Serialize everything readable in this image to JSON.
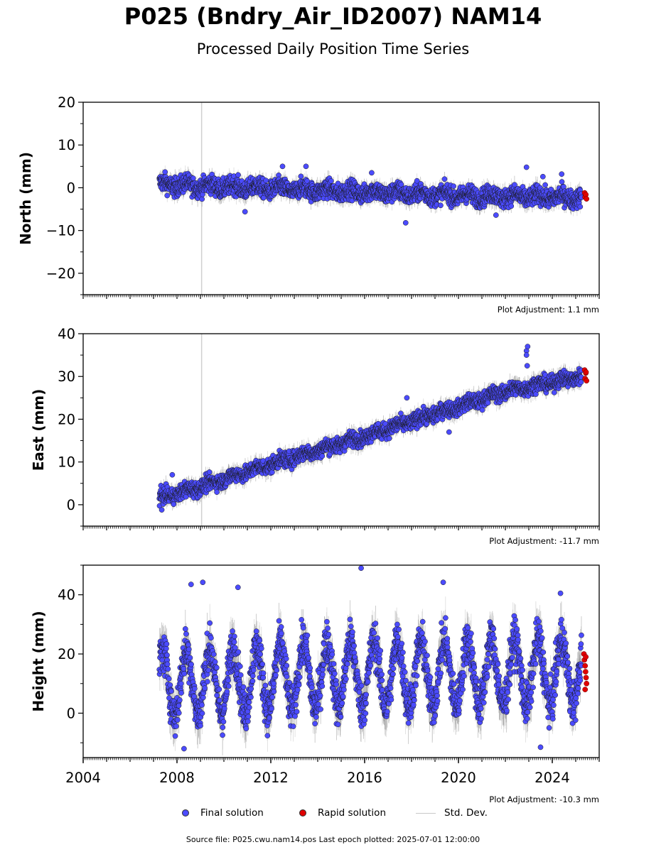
{
  "title": "P025 (Bndry_Air_ID2007) NAM14",
  "subtitle": "Processed Daily Position Time Series",
  "colors": {
    "final": "#4b4bff",
    "rapid": "#e00000",
    "stddev": "#c8c8c8",
    "outline": "#1a1a1a"
  },
  "legend": {
    "final_label": "Final solution",
    "rapid_label": "Rapid solution",
    "stddev_label": "Std. Dev."
  },
  "source_text": "Source file: P025.cwu.nam14.pos  Last epoch plotted: 2025-07-01 12:00:00",
  "chart_data": [
    {
      "type": "scatter",
      "ylabel": "North (mm)",
      "adjustment": "Plot Adjustment: 1.1 mm",
      "xlim": [
        2004,
        2026
      ],
      "ylim": [
        -25,
        20
      ],
      "yticks": [
        -20,
        -10,
        0,
        10,
        20
      ],
      "x_start": 2007.25,
      "x_end": 2025.25,
      "trend": [
        [
          2007.25,
          0.8
        ],
        [
          2015.0,
          -0.8
        ],
        [
          2020.0,
          -1.8
        ],
        [
          2025.2,
          -2.3
        ]
      ],
      "scatter_amplitude": 1.8,
      "seasonal_amplitude": 0.6,
      "outliers": [
        [
          2010.9,
          -5.6
        ],
        [
          2012.5,
          5.0
        ],
        [
          2013.5,
          5.0
        ],
        [
          2016.3,
          3.5
        ],
        [
          2017.75,
          -8.2
        ],
        [
          2021.6,
          -6.4
        ],
        [
          2022.9,
          4.8
        ],
        [
          2023.6,
          2.6
        ],
        [
          2024.4,
          3.2
        ]
      ],
      "rapid": [
        [
          2025.38,
          -1.2
        ],
        [
          2025.4,
          -2.2
        ],
        [
          2025.43,
          -1.6
        ],
        [
          2025.46,
          -2.6
        ]
      ],
      "series": [
        {
          "name": "Final solution"
        },
        {
          "name": "Rapid solution"
        }
      ]
    },
    {
      "type": "scatter",
      "ylabel": "East (mm)",
      "adjustment": "Plot Adjustment: -11.7 mm",
      "xlim": [
        2004,
        2026
      ],
      "ylim": [
        -5,
        40
      ],
      "yticks": [
        0,
        10,
        20,
        30,
        40
      ],
      "x_start": 2007.25,
      "x_end": 2025.25,
      "trend": [
        [
          2007.25,
          1.5
        ],
        [
          2009.0,
          4.2
        ],
        [
          2012.0,
          9.5
        ],
        [
          2016.0,
          16.0
        ],
        [
          2020.0,
          23.0
        ],
        [
          2022.0,
          26.5
        ],
        [
          2025.2,
          30.0
        ]
      ],
      "scatter_amplitude": 1.5,
      "seasonal_amplitude": 0.4,
      "outliers": [
        [
          2007.35,
          -1.2
        ],
        [
          2007.8,
          7.0
        ],
        [
          2017.8,
          25.0
        ],
        [
          2019.6,
          17.0
        ],
        [
          2022.9,
          36.0
        ],
        [
          2022.95,
          37.0
        ],
        [
          2022.9,
          35.0
        ],
        [
          2022.93,
          32.5
        ]
      ],
      "rapid": [
        [
          2025.38,
          31.5
        ],
        [
          2025.4,
          29.5
        ],
        [
          2025.43,
          30.8
        ],
        [
          2025.46,
          29.0
        ],
        [
          2025.44,
          31.0
        ]
      ],
      "series": [
        {
          "name": "Final solution"
        },
        {
          "name": "Rapid solution"
        }
      ]
    },
    {
      "type": "scatter",
      "ylabel": "Height (mm)",
      "adjustment": "Plot Adjustment: -10.3 mm",
      "xlim": [
        2004,
        2026
      ],
      "ylim": [
        -15,
        50
      ],
      "yticks": [
        0,
        20,
        40
      ],
      "xticks": [
        2004,
        2008,
        2012,
        2016,
        2020,
        2024
      ],
      "x_start": 2007.25,
      "x_end": 2025.25,
      "trend": [
        [
          2007.25,
          10
        ],
        [
          2015.0,
          13
        ],
        [
          2025.2,
          14
        ]
      ],
      "scatter_amplitude": 6,
      "seasonal_amplitude": 11,
      "outliers": [
        [
          2008.6,
          43.5
        ],
        [
          2009.1,
          44.2
        ],
        [
          2010.6,
          42.5
        ],
        [
          2015.85,
          49.0
        ],
        [
          2019.35,
          44.2
        ],
        [
          2023.5,
          -11.5
        ],
        [
          2024.35,
          40.5
        ],
        [
          2008.3,
          -12.0
        ]
      ],
      "rapid": [
        [
          2025.35,
          20
        ],
        [
          2025.37,
          18
        ],
        [
          2025.4,
          16
        ],
        [
          2025.42,
          14
        ],
        [
          2025.44,
          12
        ],
        [
          2025.46,
          10
        ],
        [
          2025.4,
          8
        ],
        [
          2025.43,
          19
        ]
      ],
      "series": [
        {
          "name": "Final solution"
        },
        {
          "name": "Rapid solution"
        }
      ]
    }
  ]
}
